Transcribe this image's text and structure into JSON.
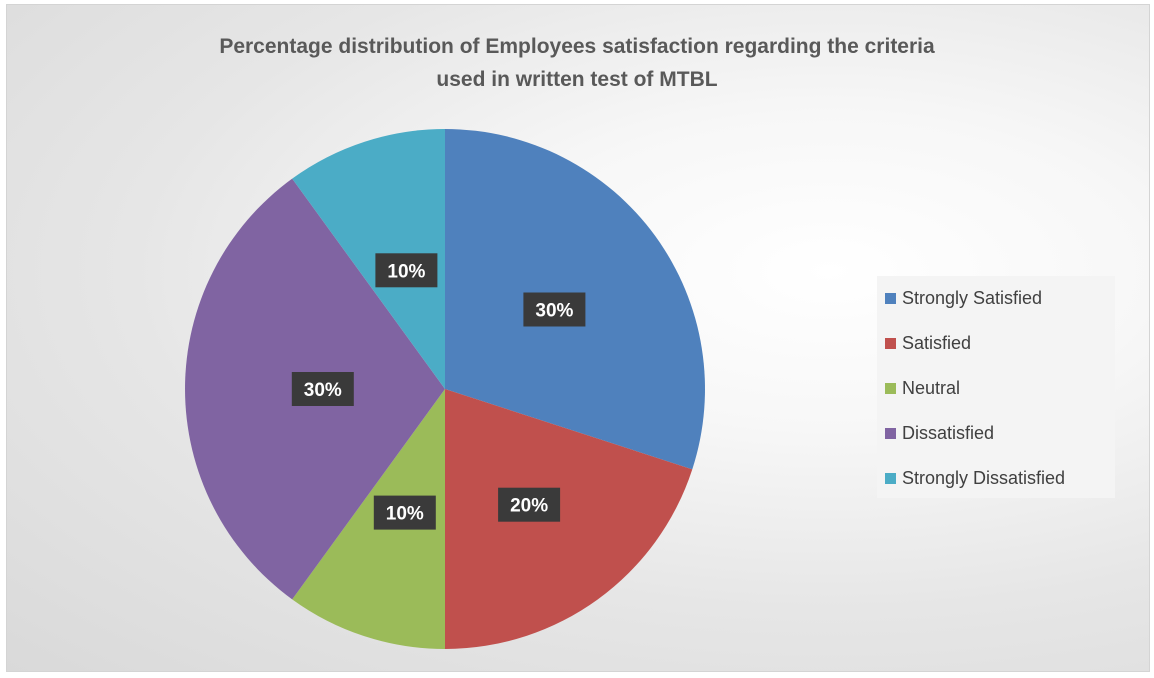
{
  "chart_data": {
    "type": "pie",
    "title_lines": [
      "Percentage distribution of Employees satisfaction regarding the criteria",
      "used in written test  of  MTBL"
    ],
    "categories": [
      "Strongly Satisfied",
      "Satisfied",
      "Neutral",
      "Dissatisfied",
      "Strongly Dissatisfied"
    ],
    "values": [
      30,
      20,
      10,
      30,
      10
    ],
    "data_labels": [
      "30%",
      "20%",
      "10%",
      "30%",
      "10%"
    ],
    "colors": [
      "#4f81bd",
      "#c0504d",
      "#9bbb59",
      "#8064a2",
      "#4bacc6"
    ],
    "start_angle_deg": 0,
    "direction": "clockwise",
    "legend_position": "right",
    "label_style": "white bold text on dark boxes"
  }
}
